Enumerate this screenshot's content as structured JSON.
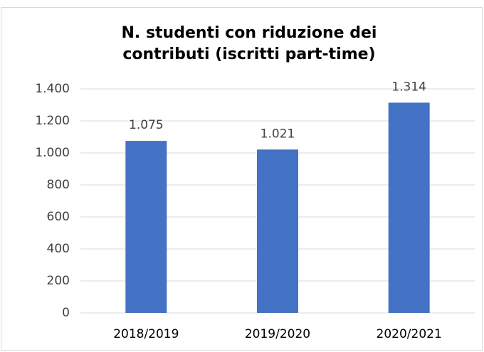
{
  "chart_data": {
    "type": "bar",
    "title": "N. studenti con riduzione dei contributi (iscritti part-time)",
    "categories": [
      "2018/2019",
      "2019/2020",
      "2020/2021"
    ],
    "values": [
      1075,
      1021,
      1314
    ],
    "value_labels": [
      "1.075",
      "1.021",
      "1.314"
    ],
    "color": "#4472c4",
    "ylim": [
      0,
      1400
    ],
    "yticks": [
      0,
      200,
      400,
      600,
      800,
      {
        "value": 1000,
        "label": "1.000"
      },
      {
        "value": 1200,
        "label": "1.200"
      },
      {
        "value": 1400,
        "label": "1.400"
      }
    ],
    "grid": true
  }
}
